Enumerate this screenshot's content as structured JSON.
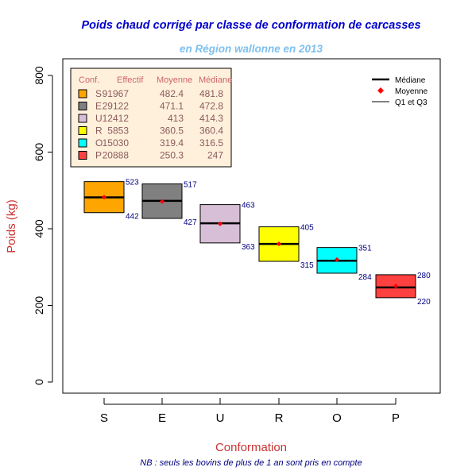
{
  "chart_data": {
    "type": "boxplot",
    "title": "Poids chaud corrigé par classe de conformation de carcasses",
    "subtitle": "en Région wallonne en 2013",
    "xlabel": "Conformation",
    "ylabel": "Poids (kg)",
    "note": "NB : seuls les bovins de plus de 1 an sont pris en compte",
    "ylim": [
      -30,
      850
    ],
    "yticks": [
      0,
      200,
      400,
      600,
      800
    ],
    "grid": false,
    "categories": [
      "S",
      "E",
      "U",
      "R",
      "O",
      "P"
    ],
    "series": [
      {
        "label": "S",
        "color": "#FFA500",
        "q1": 442,
        "q3": 523,
        "median": 481.8,
        "mean": 482.4,
        "effectif": 91967
      },
      {
        "label": "E",
        "color": "#808080",
        "q1": 427,
        "q3": 517,
        "median": 472.8,
        "mean": 471.1,
        "effectif": 29122
      },
      {
        "label": "U",
        "color": "#D8BFD8",
        "q1": 363,
        "q3": 463,
        "median": 414.3,
        "mean": 413,
        "effectif": 12412
      },
      {
        "label": "R",
        "color": "#FFFF00",
        "q1": 315,
        "q3": 405,
        "median": 360.4,
        "mean": 360.5,
        "effectif": 5853
      },
      {
        "label": "O",
        "color": "#00FFFF",
        "q1": 284,
        "q3": 351,
        "median": 316.5,
        "mean": 319.4,
        "effectif": 15030
      },
      {
        "label": "P",
        "color": "#FF4040",
        "q1": 220,
        "q3": 280,
        "median": 247,
        "mean": 250.3,
        "effectif": 20888
      }
    ],
    "table_legend": {
      "headers": [
        "Conf.",
        "Effectif",
        "Moyenne",
        "Médiane"
      ],
      "rows": [
        [
          "S",
          "91967",
          "482.4",
          "481.8"
        ],
        [
          "E",
          "29122",
          "471.1",
          "472.8"
        ],
        [
          "U",
          "12412",
          "413",
          "414.3"
        ],
        [
          "R",
          "5853",
          "360.5",
          "360.4"
        ],
        [
          "O",
          "15030",
          "319.4",
          "316.5"
        ],
        [
          "P",
          "20888",
          "250.3",
          "247"
        ]
      ]
    },
    "key_legend": {
      "median": "Médiane",
      "mean": "Moyenne",
      "quartiles": "Q1 et Q3"
    },
    "colors": {
      "title": "#0000CC",
      "subtitle": "#7EC0EE",
      "axis_label": "#CC3333",
      "value_label": "#000080",
      "mean_point": "#FF0000",
      "table_bg": "#FFF0DC",
      "table_text": "#8B5A5A",
      "table_header": "#CC6666"
    }
  }
}
